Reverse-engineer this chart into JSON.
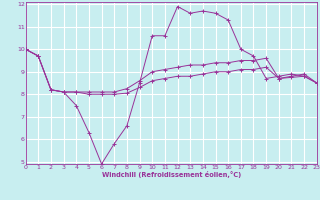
{
  "xlabel": "Windchill (Refroidissement éolien,°C)",
  "bg_color": "#c8eef0",
  "grid_color": "#ffffff",
  "line_color": "#993399",
  "xmin": 0,
  "xmax": 23,
  "ymin": 5,
  "ymax": 12,
  "x_ticks": [
    0,
    1,
    2,
    3,
    4,
    5,
    6,
    7,
    8,
    9,
    10,
    11,
    12,
    13,
    14,
    15,
    16,
    17,
    18,
    19,
    20,
    21,
    22,
    23
  ],
  "y_ticks": [
    5,
    6,
    7,
    8,
    9,
    10,
    11,
    12
  ],
  "series": [
    {
      "x": [
        0,
        1,
        2,
        3,
        4,
        5,
        6,
        7,
        8,
        9,
        10,
        11,
        12,
        13,
        14,
        15,
        16,
        17,
        18,
        19,
        20,
        21,
        22,
        23
      ],
      "y": [
        10.0,
        9.7,
        8.2,
        8.1,
        7.5,
        6.3,
        4.9,
        5.8,
        6.6,
        8.5,
        10.6,
        10.6,
        11.9,
        11.6,
        11.7,
        11.6,
        11.3,
        10.0,
        9.7,
        8.7,
        8.8,
        8.9,
        8.8,
        8.5
      ]
    },
    {
      "x": [
        0,
        1,
        2,
        3,
        4,
        5,
        6,
        7,
        8,
        9,
        10,
        11,
        12,
        13,
        14,
        15,
        16,
        17,
        18,
        19,
        20,
        21,
        22,
        23
      ],
      "y": [
        10.0,
        9.7,
        8.2,
        8.1,
        8.1,
        8.1,
        8.1,
        8.1,
        8.25,
        8.6,
        9.0,
        9.1,
        9.2,
        9.3,
        9.3,
        9.4,
        9.4,
        9.5,
        9.5,
        9.6,
        8.7,
        8.8,
        8.9,
        8.5
      ]
    },
    {
      "x": [
        0,
        1,
        2,
        3,
        4,
        5,
        6,
        7,
        8,
        9,
        10,
        11,
        12,
        13,
        14,
        15,
        16,
        17,
        18,
        19,
        20,
        21,
        22,
        23
      ],
      "y": [
        10.0,
        9.7,
        8.2,
        8.1,
        8.1,
        8.0,
        8.0,
        8.0,
        8.05,
        8.3,
        8.6,
        8.7,
        8.8,
        8.8,
        8.9,
        9.0,
        9.0,
        9.1,
        9.1,
        9.2,
        8.7,
        8.75,
        8.8,
        8.5
      ]
    }
  ]
}
